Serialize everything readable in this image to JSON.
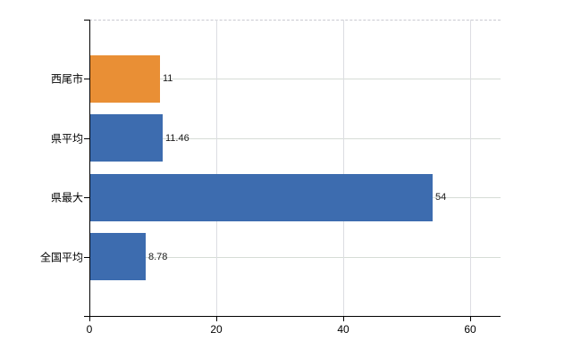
{
  "chart_data": {
    "type": "bar",
    "orientation": "horizontal",
    "title": "",
    "xlabel": "",
    "ylabel": "",
    "categories": [
      "西尾市",
      "県平均",
      "県最大",
      "全国平均"
    ],
    "values": [
      11,
      11.46,
      54,
      8.78
    ],
    "value_labels": [
      "11",
      "11.46",
      "54",
      "8.78"
    ],
    "bar_colors": [
      "#E98F35",
      "#3D6CAF",
      "#3D6CAF",
      "#3D6CAF"
    ],
    "x_ticks": [
      0,
      20,
      40,
      60
    ],
    "x_tick_labels": [
      "0",
      "20",
      "40",
      "60"
    ],
    "xlim": [
      0,
      64.8
    ],
    "grid": true,
    "legend": "none"
  },
  "colors": {
    "highlight_bar": "#E98F35",
    "default_bar": "#3D6CAF",
    "grid_horizontal": "#d6dcd6",
    "grid_vertical": "#dcdde2",
    "plot_border_dashed": "#c9c9d1",
    "axis": "#000000",
    "text": "#000000",
    "background": "#ffffff"
  }
}
